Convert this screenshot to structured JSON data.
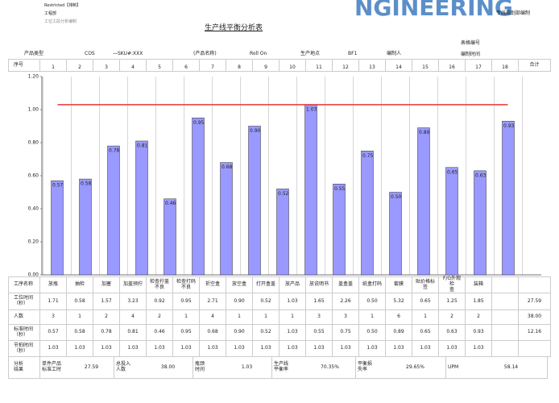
{
  "header": {
    "restricted": "Restricted【排制】",
    "dept": "工程部",
    "note": "工位工段分析编制",
    "brand": "NGINEERING",
    "brand_note": "专线规划部编制",
    "title": "生产线平衡分析表",
    "form_no": "表格编号",
    "date": "编制时间"
  },
  "info": [
    "产品类型",
    "COS",
    "—SKU#:XXX",
    "(产品名称)",
    "Roll On",
    "生产地点",
    "BF1",
    "编制人"
  ],
  "seq": {
    "label": "序号",
    "numbers": [
      1,
      2,
      3,
      4,
      5,
      6,
      7,
      8,
      9,
      10,
      11,
      12,
      13,
      14,
      15,
      16,
      17,
      18
    ],
    "total": "合计"
  },
  "chart_data": {
    "type": "bar",
    "categories": [
      "放瓶",
      "抽检",
      "加塞",
      "加盖预拧",
      "检查拧盖\n不良",
      "检查打码\n不良",
      "折空盒",
      "放空盒",
      "打开盒盖",
      "放产品",
      "放说明书",
      "盖盒盖",
      "纸盒打码",
      "套膜",
      "贴价格标\n签",
      "F/G外观\n检\n查",
      "装箱"
    ],
    "values": [
      0.57,
      0.58,
      0.78,
      0.81,
      0.46,
      0.95,
      0.68,
      0.9,
      0.52,
      1.03,
      0.55,
      0.75,
      0.5,
      0.89,
      0.65,
      0.63,
      0.93
    ],
    "value_labels": [
      "0.57",
      "0.58",
      "0.78",
      "0.81",
      "0.46",
      "0.95",
      "0.68",
      "0.90",
      "0.52",
      "1.03",
      "0.55",
      "0.75",
      "0.50",
      "0.89",
      "0.65",
      "0.63",
      "0.93"
    ],
    "color": "#9999ff",
    "reference_line": {
      "value": 1.03,
      "color": "#e53935"
    },
    "ylim": [
      0,
      1.2
    ],
    "yticks": [
      {
        "value": 0,
        "label": "0.00"
      },
      {
        "value": 0.2,
        "label": "0.20"
      },
      {
        "value": 0.4,
        "label": "0.40"
      },
      {
        "value": 0.6,
        "label": "0.60"
      },
      {
        "value": 0.8,
        "label": "0.80"
      },
      {
        "value": 1,
        "label": "1.00"
      },
      {
        "value": 1.2,
        "label": "1.20"
      }
    ]
  },
  "table": {
    "name_label": "工序名称",
    "rows": [
      {
        "label": "工位时间\n（秒）",
        "cells": [
          "1.71",
          "0.58",
          "1.57",
          "3.23",
          "0.92",
          "0.95",
          "2.71",
          "0.90",
          "0.52",
          "1.03",
          "1.65",
          "2.26",
          "0.50",
          "5.32",
          "0.65",
          "1.25",
          "1.85"
        ],
        "total": "27.59"
      },
      {
        "label": "人数",
        "cells": [
          "3",
          "1",
          "2",
          "4",
          "2",
          "1",
          "4",
          "1",
          "1",
          "1",
          "3",
          "3",
          "1",
          "6",
          "1",
          "2",
          "2"
        ],
        "total": "38.00"
      },
      {
        "label": "标准时间\n（秒）",
        "cells": [
          "0.57",
          "0.58",
          "0.78",
          "0.81",
          "0.46",
          "0.95",
          "0.68",
          "0.90",
          "0.52",
          "1.03",
          "0.55",
          "0.75",
          "0.50",
          "0.89",
          "0.65",
          "0.63",
          "0.93"
        ],
        "total": "12.16"
      },
      {
        "label": "节拍时间\n（秒）",
        "cells": [
          "1.03",
          "1.03",
          "1.03",
          "1.03",
          "1.03",
          "1.03",
          "1.03",
          "1.03",
          "1.03",
          "1.03",
          "1.03",
          "1.03",
          "1.03",
          "1.03",
          "1.03",
          "1.03",
          "1.03"
        ]
      }
    ]
  },
  "analysis": {
    "label": "分析\n结果",
    "items": [
      {
        "label": "单件产品\n标准工时",
        "value": "27.59"
      },
      {
        "label": "总投入\n人数",
        "value": "38.00"
      },
      {
        "label": "瓶颈\n时间",
        "value": "1.03"
      },
      {
        "label": "生产线\n平衡率",
        "value": "70.35%"
      },
      {
        "label": "平衡损\n失率",
        "value": "29.65%"
      },
      {
        "label": "UPM",
        "value": "58.14"
      }
    ]
  }
}
